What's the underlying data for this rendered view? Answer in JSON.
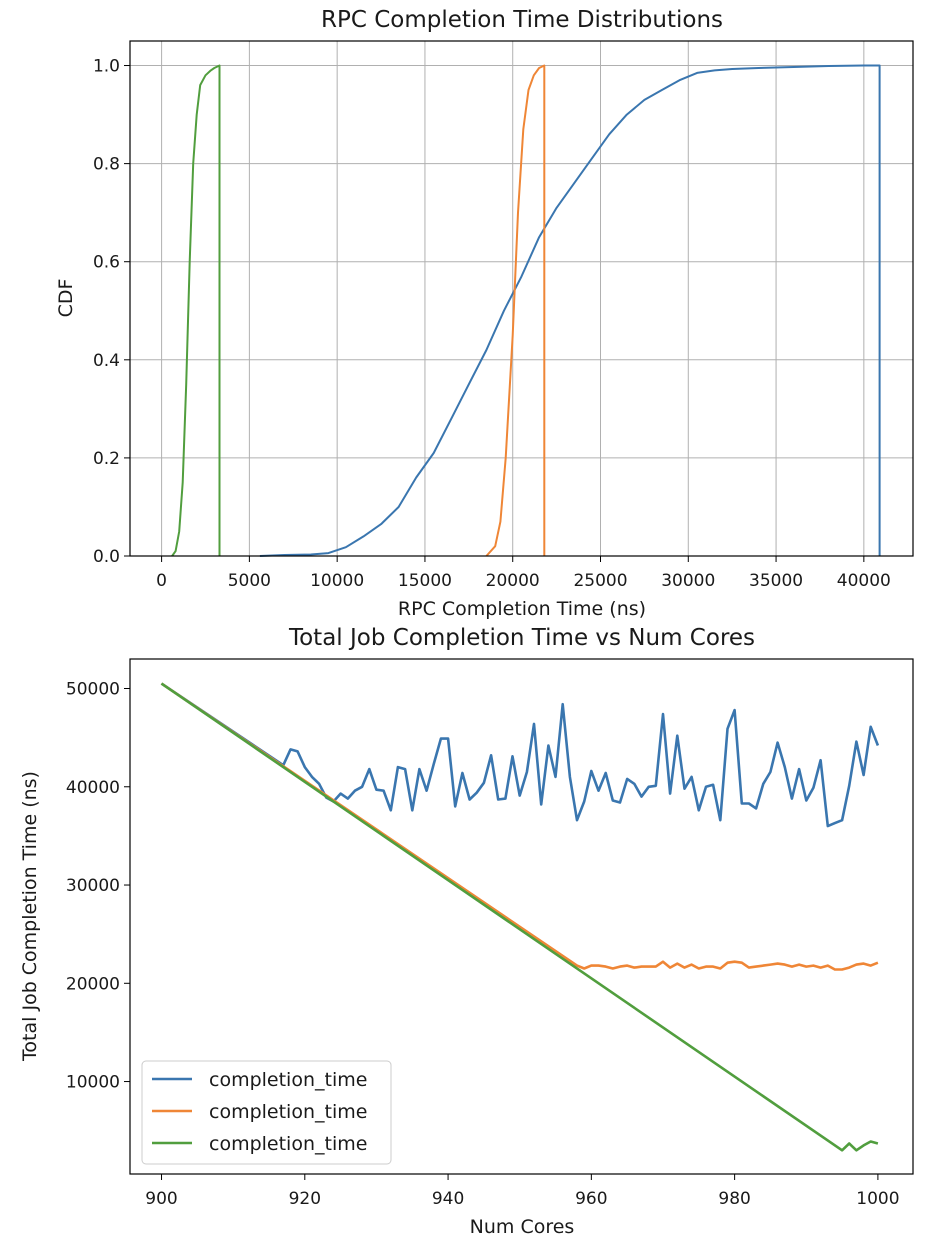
{
  "chart_data": [
    {
      "type": "line",
      "subtype": "step-cdf",
      "title": "RPC Completion Time Distributions",
      "xlabel": "RPC Completion Time (ns)",
      "ylabel": "CDF",
      "xlim": [
        -1800,
        42800
      ],
      "ylim": [
        0,
        1.05
      ],
      "xticks": [
        0,
        5000,
        10000,
        15000,
        20000,
        25000,
        30000,
        35000,
        40000
      ],
      "yticks": [
        0.0,
        0.2,
        0.4,
        0.6,
        0.8,
        1.0
      ],
      "ytick_labels": [
        "0.0",
        "0.2",
        "0.4",
        "0.6",
        "0.8",
        "1.0"
      ],
      "grid": true,
      "series": [
        {
          "color": "#3a76af",
          "x": [
            5600,
            7000,
            8500,
            9500,
            10500,
            11500,
            12500,
            13500,
            14500,
            15500,
            16500,
            17500,
            18500,
            19500,
            20500,
            21500,
            22500,
            23500,
            24500,
            25500,
            26500,
            27500,
            28500,
            29500,
            30500,
            31500,
            32500,
            34000,
            36000,
            38000,
            40000,
            40900,
            40900
          ],
          "y": [
            0.0,
            0.002,
            0.003,
            0.006,
            0.018,
            0.04,
            0.065,
            0.1,
            0.16,
            0.21,
            0.28,
            0.35,
            0.42,
            0.5,
            0.57,
            0.65,
            0.71,
            0.76,
            0.81,
            0.86,
            0.9,
            0.93,
            0.95,
            0.97,
            0.985,
            0.99,
            0.993,
            0.995,
            0.997,
            0.999,
            1.0,
            1.0,
            0.0
          ]
        },
        {
          "color": "#ef8636",
          "x": [
            18500,
            19000,
            19300,
            19600,
            20000,
            20300,
            20600,
            20900,
            21200,
            21500,
            21800,
            21800
          ],
          "y": [
            0.0,
            0.02,
            0.07,
            0.2,
            0.45,
            0.7,
            0.87,
            0.95,
            0.98,
            0.995,
            1.0,
            0.0
          ]
        },
        {
          "color": "#519e3e",
          "x": [
            600,
            800,
            1000,
            1200,
            1400,
            1600,
            1800,
            2000,
            2200,
            2500,
            2800,
            3000,
            3300,
            3300
          ],
          "y": [
            0.0,
            0.01,
            0.05,
            0.15,
            0.35,
            0.6,
            0.8,
            0.9,
            0.96,
            0.98,
            0.99,
            0.995,
            1.0,
            0.0
          ]
        }
      ]
    },
    {
      "type": "line",
      "title": "Total Job Completion Time vs Num Cores",
      "xlabel": "Num Cores",
      "ylabel": "Total Job Completion Time (ns)",
      "xlim": [
        895.6,
        1004.9
      ],
      "ylim": [
        591,
        53003
      ],
      "xticks": [
        900,
        920,
        940,
        960,
        980,
        1000
      ],
      "yticks": [
        10000,
        20000,
        30000,
        40000,
        50000
      ],
      "grid": false,
      "legend_position": "lower-left",
      "series": [
        {
          "name": "completion_time",
          "color": "#3a76af",
          "x": [
            900,
            917,
            918,
            919,
            920,
            921,
            922,
            923,
            924,
            925,
            926,
            927,
            928,
            929,
            930,
            931,
            932,
            933,
            934,
            935,
            936,
            937,
            938,
            939,
            940,
            941,
            942,
            943,
            944,
            945,
            946,
            947,
            948,
            949,
            950,
            951,
            952,
            953,
            954,
            955,
            956,
            957,
            958,
            959,
            960,
            961,
            962,
            963,
            964,
            965,
            966,
            967,
            968,
            969,
            970,
            971,
            972,
            973,
            974,
            975,
            976,
            977,
            978,
            979,
            980,
            981,
            982,
            983,
            984,
            985,
            986,
            987,
            988,
            989,
            990,
            991,
            992,
            993,
            994,
            995,
            996,
            997,
            998,
            999,
            1000
          ],
          "y": [
            50500,
            42200,
            43800,
            43600,
            42000,
            41000,
            40300,
            38900,
            38500,
            39300,
            38800,
            39600,
            40000,
            41800,
            39700,
            39600,
            37600,
            42000,
            41800,
            37600,
            41800,
            39600,
            42300,
            44900,
            44900,
            38000,
            41400,
            38700,
            39400,
            40400,
            43200,
            38700,
            38800,
            43100,
            39100,
            41500,
            46400,
            38200,
            44200,
            41000,
            48400,
            41000,
            36600,
            38500,
            41600,
            39600,
            41400,
            38600,
            38400,
            40800,
            40300,
            39000,
            40000,
            40100,
            47400,
            39300,
            45200,
            39800,
            41000,
            37600,
            40000,
            40200,
            36600,
            45900,
            47800,
            38300,
            38300,
            37800,
            40300,
            41500,
            44500,
            42000,
            38800,
            41800,
            38600,
            39900,
            42700,
            36000,
            36300,
            36600,
            40100,
            44600,
            41200,
            46100,
            44200
          ]
        },
        {
          "name": "completion_time",
          "color": "#ef8636",
          "x": [
            900,
            958,
            959,
            960,
            961,
            962,
            963,
            964,
            965,
            966,
            967,
            968,
            969,
            970,
            971,
            972,
            973,
            974,
            975,
            976,
            977,
            978,
            979,
            980,
            981,
            982,
            983,
            984,
            985,
            986,
            987,
            988,
            989,
            990,
            991,
            992,
            993,
            994,
            995,
            996,
            997,
            998,
            999,
            1000
          ],
          "y": [
            50500,
            21800,
            21500,
            21800,
            21800,
            21700,
            21500,
            21700,
            21800,
            21600,
            21700,
            21700,
            21700,
            22200,
            21600,
            22000,
            21600,
            21900,
            21500,
            21700,
            21700,
            21500,
            22100,
            22200,
            22100,
            21600,
            21700,
            21800,
            21900,
            22000,
            21900,
            21700,
            21900,
            21700,
            21800,
            21600,
            21800,
            21400,
            21400,
            21600,
            21900,
            22000,
            21800,
            22100
          ]
        },
        {
          "name": "completion_time",
          "color": "#519e3e",
          "x": [
            900,
            995,
            996,
            997,
            998,
            999,
            1000
          ],
          "y": [
            50500,
            3000,
            3700,
            3000,
            3500,
            3900,
            3700
          ]
        }
      ]
    }
  ]
}
